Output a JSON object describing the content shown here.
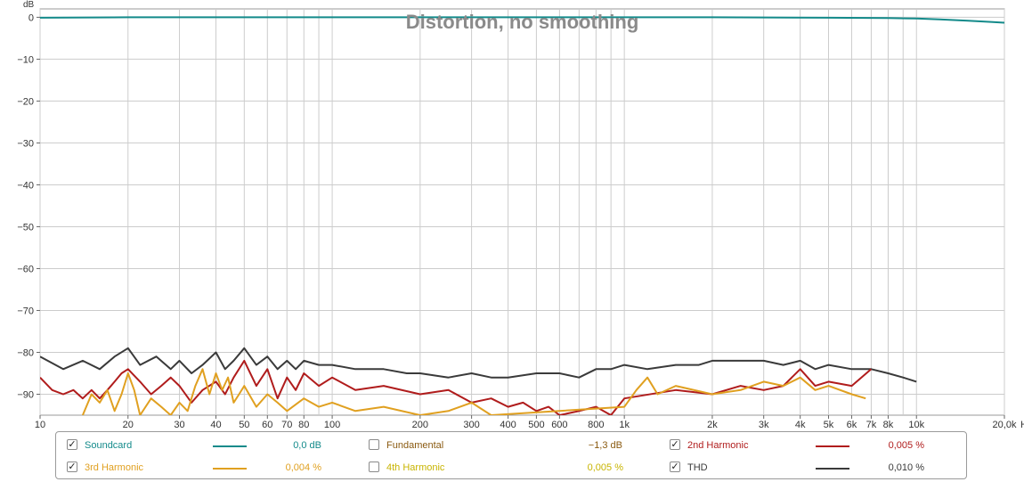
{
  "chart_data": {
    "type": "line",
    "title": "Distortion, no smoothing",
    "ylabel": "dB",
    "xlabel": "Hz",
    "x_scale": "log",
    "xlim": [
      10,
      20000
    ],
    "ylim": [
      -95,
      2
    ],
    "grid": true,
    "y_ticks": [
      0,
      -10,
      -20,
      -30,
      -40,
      -50,
      -60,
      -70,
      -80,
      -90
    ],
    "y_tick_labels": [
      "0",
      "−10",
      "−20",
      "−30",
      "−40",
      "−50",
      "−60",
      "−70",
      "−80",
      "−90"
    ],
    "x_ticks": [
      10,
      20,
      30,
      40,
      50,
      60,
      70,
      80,
      100,
      200,
      300,
      400,
      500,
      600,
      800,
      1000,
      2000,
      3000,
      4000,
      5000,
      6000,
      7000,
      8000,
      10000,
      20000
    ],
    "x_tick_labels": [
      "10",
      "20",
      "30",
      "40",
      "50",
      "60",
      "70",
      "80",
      "100",
      "200",
      "300",
      "400",
      "500",
      "600",
      "800",
      "1k",
      "2k",
      "3k",
      "4k",
      "5k",
      "6k",
      "7k",
      "8k",
      "10k",
      "20,0k"
    ],
    "series": [
      {
        "name": "Soundcard",
        "color": "#138a8a",
        "x": [
          10,
          20,
          50,
          100,
          200,
          500,
          1000,
          2000,
          5000,
          8000,
          10000,
          12000,
          15000,
          18000,
          20000
        ],
        "y": [
          -0.1,
          0.0,
          0.0,
          0.0,
          0.0,
          0.0,
          0.0,
          0.0,
          -0.1,
          -0.2,
          -0.3,
          -0.5,
          -0.8,
          -1.1,
          -1.3
        ]
      },
      {
        "name": "THD",
        "color": "#3a3a3a",
        "x": [
          10,
          12,
          14,
          16,
          18,
          20,
          22,
          25,
          28,
          30,
          33,
          36,
          40,
          43,
          46,
          50,
          55,
          60,
          65,
          70,
          75,
          80,
          90,
          100,
          120,
          150,
          180,
          200,
          250,
          300,
          350,
          400,
          500,
          600,
          700,
          800,
          900,
          1000,
          1200,
          1500,
          1800,
          2000,
          2500,
          3000,
          3500,
          4000,
          4500,
          5000,
          6000,
          7000,
          8000,
          9000,
          10000
        ],
        "y": [
          -81,
          -84,
          -82,
          -84,
          -81,
          -79,
          -83,
          -81,
          -84,
          -82,
          -85,
          -83,
          -80,
          -84,
          -82,
          -79,
          -83,
          -81,
          -84,
          -82,
          -84,
          -82,
          -83,
          -83,
          -84,
          -84,
          -85,
          -85,
          -86,
          -85,
          -86,
          -86,
          -85,
          -85,
          -86,
          -84,
          -84,
          -83,
          -84,
          -83,
          -83,
          -82,
          -82,
          -82,
          -83,
          -82,
          -84,
          -83,
          -84,
          -84,
          -85,
          -86,
          -87
        ]
      },
      {
        "name": "2nd Harmonic",
        "color": "#b01c1c",
        "x": [
          10,
          11,
          12,
          13,
          14,
          15,
          16,
          17,
          18,
          19,
          20,
          22,
          24,
          26,
          28,
          30,
          33,
          36,
          40,
          43,
          46,
          50,
          55,
          60,
          65,
          70,
          75,
          80,
          90,
          100,
          120,
          150,
          200,
          250,
          300,
          350,
          400,
          450,
          500,
          550,
          600,
          700,
          800,
          900,
          1000,
          1500,
          2000,
          2500,
          3000,
          3500,
          4000,
          4500,
          5000,
          6000,
          7000
        ],
        "y": [
          -86,
          -89,
          -90,
          -89,
          -91,
          -89,
          -91,
          -89,
          -87,
          -85,
          -84,
          -87,
          -90,
          -88,
          -86,
          -88,
          -92,
          -89,
          -87,
          -90,
          -86,
          -82,
          -88,
          -84,
          -91,
          -86,
          -89,
          -85,
          -88,
          -86,
          -89,
          -88,
          -90,
          -89,
          -92,
          -91,
          -93,
          -92,
          -94,
          -93,
          -95,
          -94,
          -93,
          -95,
          -91,
          -89,
          -90,
          -88,
          -89,
          -88,
          -84,
          -88,
          -87,
          -88,
          -84
        ]
      },
      {
        "name": "3rd Harmonic",
        "color": "#e0a020",
        "x": [
          14,
          15,
          16,
          17,
          18,
          19,
          20,
          21,
          22,
          24,
          26,
          28,
          30,
          32,
          34,
          36,
          38,
          40,
          42,
          44,
          46,
          48,
          50,
          55,
          60,
          65,
          70,
          80,
          90,
          100,
          120,
          150,
          200,
          250,
          300,
          350,
          1000,
          1100,
          1200,
          1300,
          1500,
          2000,
          2500,
          3000,
          3500,
          4000,
          4500,
          5000,
          6000,
          6700
        ],
        "y": [
          -95,
          -90,
          -92,
          -89,
          -94,
          -90,
          -85,
          -89,
          -95,
          -91,
          -93,
          -95,
          -92,
          -94,
          -88,
          -84,
          -90,
          -85,
          -89,
          -86,
          -92,
          -90,
          -88,
          -93,
          -90,
          -92,
          -94,
          -91,
          -93,
          -92,
          -94,
          -93,
          -95,
          -94,
          -92,
          -95,
          -93,
          -89,
          -86,
          -90,
          -88,
          -90,
          -89,
          -87,
          -88,
          -86,
          -89,
          -88,
          -90,
          -91
        ]
      }
    ]
  },
  "legend": {
    "items": [
      {
        "label": "Soundcard",
        "checked": true,
        "value": "0,0 dB",
        "color": "#138a8a",
        "swatch": true
      },
      {
        "label": "Fundamental",
        "checked": false,
        "value": "−1,3 dB",
        "color": "#8a5a10",
        "swatch": false
      },
      {
        "label": "2nd Harmonic",
        "checked": true,
        "value": "0,005 %",
        "color": "#b01c1c",
        "swatch": true
      },
      {
        "label": "3rd Harmonic",
        "checked": true,
        "value": "0,004 %",
        "color": "#e0a020",
        "swatch": true
      },
      {
        "label": "4th Harmonic",
        "checked": false,
        "value": "0,005 %",
        "color": "#c8b400",
        "swatch": false
      },
      {
        "label": "THD",
        "checked": true,
        "value": "0,010 %",
        "color": "#3a3a3a",
        "swatch": true
      }
    ]
  }
}
